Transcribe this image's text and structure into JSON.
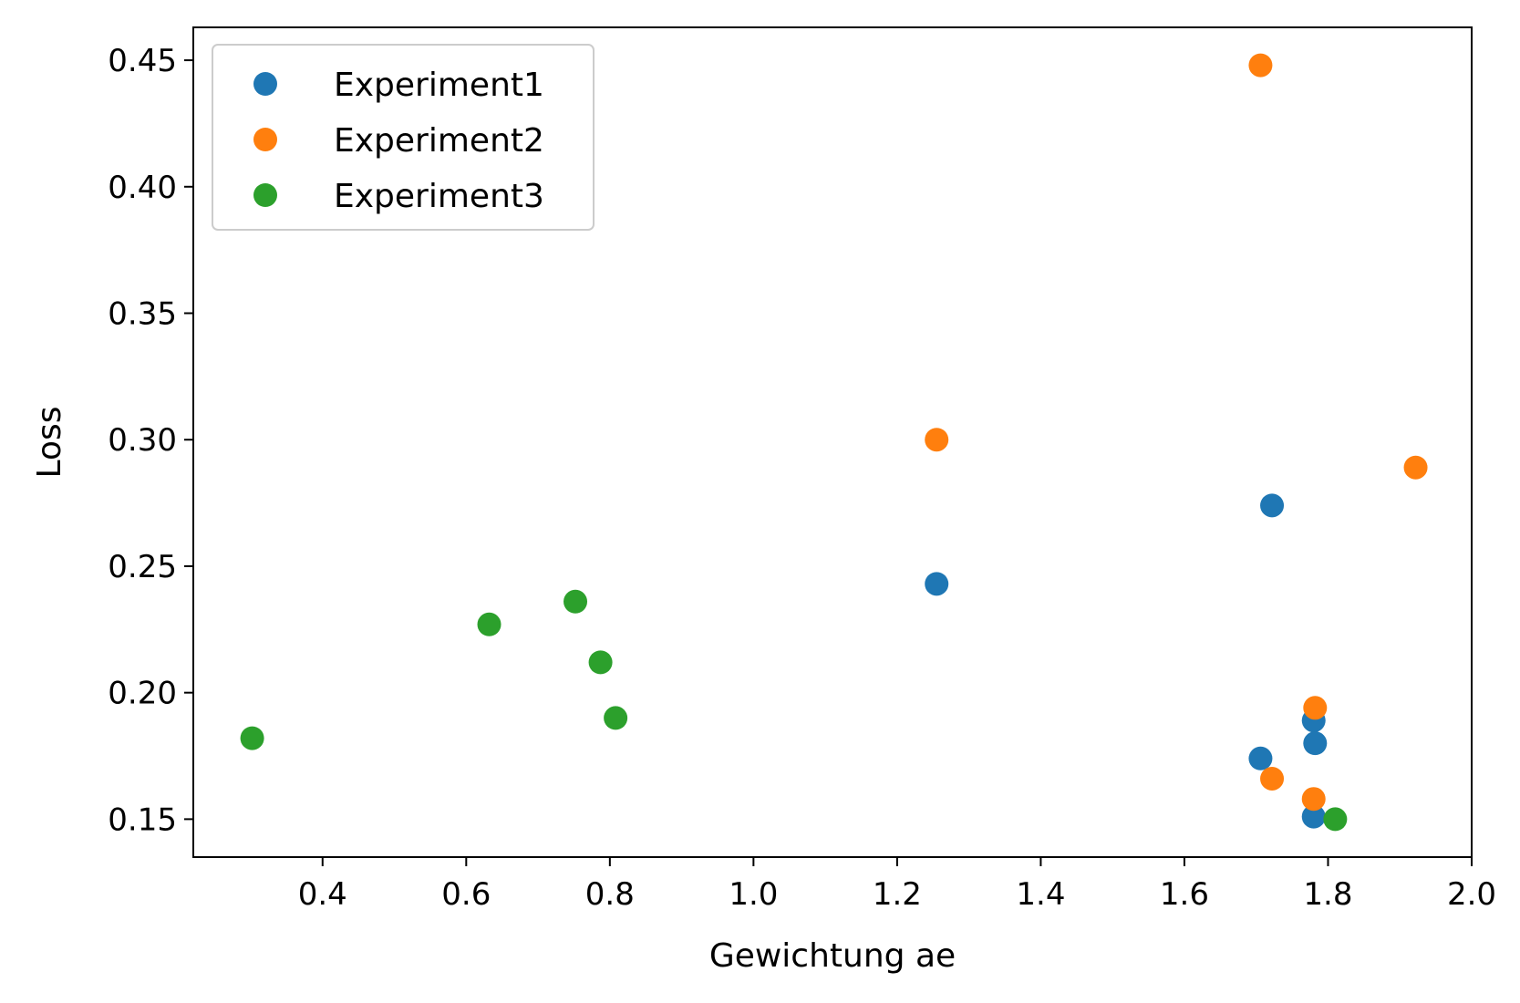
{
  "chart_data": {
    "type": "scatter",
    "title": "",
    "xlabel": "Gewichtung ae",
    "ylabel": "Loss",
    "xlim": [
      0.22,
      2.0
    ],
    "ylim": [
      0.135,
      0.463
    ],
    "xticks": [
      0.4,
      0.6,
      0.8,
      1.0,
      1.2,
      1.4,
      1.6,
      1.8,
      2.0
    ],
    "xtick_labels": [
      "0.4",
      "0.6",
      "0.8",
      "1.0",
      "1.2",
      "1.4",
      "1.6",
      "1.8",
      "2.0"
    ],
    "yticks": [
      0.15,
      0.2,
      0.25,
      0.3,
      0.35,
      0.4,
      0.45
    ],
    "ytick_labels": [
      "0.15",
      "0.20",
      "0.25",
      "0.30",
      "0.35",
      "0.40",
      "0.45"
    ],
    "grid": false,
    "legend_position": "top-left",
    "series": [
      {
        "name": "Experiment1",
        "color": "#1f77b4",
        "points": [
          {
            "x": 1.255,
            "y": 0.243
          },
          {
            "x": 1.722,
            "y": 0.274
          },
          {
            "x": 1.78,
            "y": 0.189
          },
          {
            "x": 1.782,
            "y": 0.18
          },
          {
            "x": 1.706,
            "y": 0.174
          },
          {
            "x": 1.78,
            "y": 0.151
          }
        ]
      },
      {
        "name": "Experiment2",
        "color": "#ff7f0e",
        "points": [
          {
            "x": 1.706,
            "y": 0.448
          },
          {
            "x": 1.255,
            "y": 0.3
          },
          {
            "x": 1.922,
            "y": 0.289
          },
          {
            "x": 1.782,
            "y": 0.194
          },
          {
            "x": 1.722,
            "y": 0.166
          },
          {
            "x": 1.78,
            "y": 0.158
          }
        ]
      },
      {
        "name": "Experiment3",
        "color": "#2ca02c",
        "points": [
          {
            "x": 0.302,
            "y": 0.182
          },
          {
            "x": 0.632,
            "y": 0.227
          },
          {
            "x": 0.752,
            "y": 0.236
          },
          {
            "x": 0.787,
            "y": 0.212
          },
          {
            "x": 0.808,
            "y": 0.19
          },
          {
            "x": 1.81,
            "y": 0.15
          }
        ]
      }
    ]
  }
}
